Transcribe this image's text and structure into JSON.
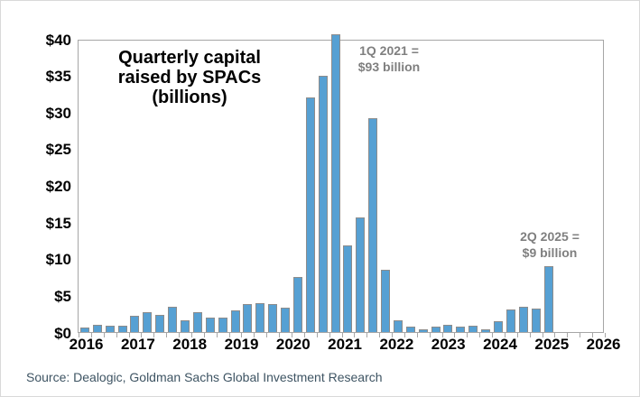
{
  "chart_data": {
    "type": "bar",
    "title": "Quarterly capital raised by SPACs (billions)",
    "title_lines": {
      "line1": "Quarterly capital",
      "line2": "raised by SPACs",
      "line3": "(billions)"
    },
    "categories": [
      "1Q 2016",
      "2Q 2016",
      "3Q 2016",
      "4Q 2016",
      "1Q 2017",
      "2Q 2017",
      "3Q 2017",
      "4Q 2017",
      "1Q 2018",
      "2Q 2018",
      "3Q 2018",
      "4Q 2018",
      "1Q 2019",
      "2Q 2019",
      "3Q 2019",
      "4Q 2019",
      "1Q 2020",
      "2Q 2020",
      "3Q 2020",
      "4Q 2020",
      "1Q 2021",
      "2Q 2021",
      "3Q 2021",
      "4Q 2021",
      "1Q 2022",
      "2Q 2022",
      "3Q 2022",
      "4Q 2022",
      "1Q 2023",
      "2Q 2023",
      "3Q 2023",
      "4Q 2023",
      "1Q 2024",
      "2Q 2024",
      "3Q 2024",
      "4Q 2024",
      "1Q 2025",
      "2Q 2025"
    ],
    "values": [
      0.6,
      1.0,
      0.9,
      0.9,
      2.2,
      2.7,
      2.3,
      3.5,
      1.6,
      2.7,
      2.0,
      2.0,
      3.0,
      3.8,
      3.9,
      3.8,
      3.3,
      7.5,
      32.0,
      35.0,
      93.0,
      11.8,
      15.6,
      29.2,
      8.5,
      1.6,
      0.7,
      0.4,
      0.8,
      1.0,
      0.8,
      0.9,
      0.4,
      1.5,
      3.1,
      3.5,
      3.2,
      9.0
    ],
    "clipped_bar": {
      "category": "1Q 2021",
      "actual_value": 93,
      "axis_max": 40
    },
    "ylim": [
      0,
      40
    ],
    "y_tick_labels": [
      "$40",
      "$35",
      "$30",
      "$25",
      "$20",
      "$15",
      "$10",
      "$5",
      "$0"
    ],
    "x_year_labels": [
      "2016",
      "2017",
      "2018",
      "2019",
      "2020",
      "2021",
      "2022",
      "2023",
      "2024",
      "2025",
      "2026"
    ],
    "grid": false,
    "legend": "none",
    "annotations": {
      "a2021": {
        "line1": "1Q 2021 =",
        "line2": "$93 billion"
      },
      "a2025": {
        "line1": "2Q 2025 =",
        "line2": "$9 billion"
      }
    },
    "source": "Source: Dealogic, Goldman Sachs Global Investment Research",
    "colors": {
      "bar_fill": "#56a0d3",
      "bar_border": "#8c8c8c",
      "plot_border": "#a6a6a6",
      "axis_label": "#000000",
      "annotation": "#7f7f7f",
      "source_text": "#3e5463",
      "background": "#ffffff"
    }
  }
}
